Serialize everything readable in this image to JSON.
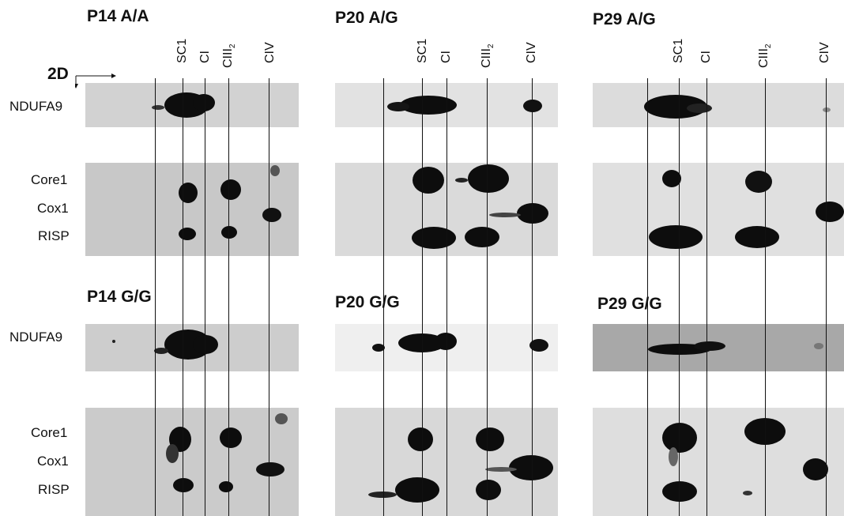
{
  "axis_label": "2D",
  "panels": {
    "p14_ag": {
      "title": "P14 A/A"
    },
    "p20_ag": {
      "title": "P20 A/G"
    },
    "p29_ag": {
      "title": "P29 A/G"
    },
    "p14_gg": {
      "title": "P14 G/G"
    },
    "p20_gg": {
      "title": "P20 G/G"
    },
    "p29_gg": {
      "title": "P29 G/G"
    }
  },
  "row_labels": {
    "top_ndufa9": "NDUFA9",
    "top_core1": "Core1",
    "top_cox1": "Cox1",
    "top_risp": "RISP",
    "bottom_ndufa9": "NDUFA9",
    "bottom_core1": "Core1",
    "bottom_cox1": "Cox1",
    "bottom_risp": "RISP"
  },
  "column_labels": {
    "sc1": "SC1",
    "ci": "CI",
    "ciii2_main": "CIII",
    "ciii2_sub": "2",
    "civ": "CIV"
  },
  "colors": {
    "background": "#ffffff",
    "blot_bg_dark": "#cfcfcf",
    "blot_bg_light": "#eeeeee",
    "band": "#0d0d0d"
  }
}
